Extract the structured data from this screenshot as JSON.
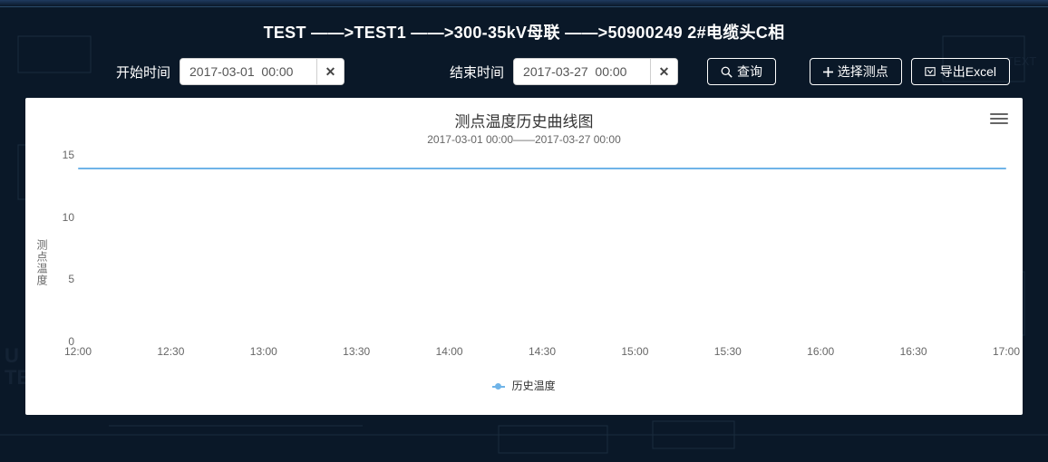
{
  "breadcrumb": "TEST ——>TEST1 ——>300-35kV母联 ——>50900249 2#电缆头C相",
  "toolbar": {
    "start_label": "开始时间",
    "start_value": "2017-03-01  00:00",
    "end_label": "结束时间",
    "end_value": "2017-03-27  00:00",
    "query_label": "查询",
    "select_point_label": "选择测点",
    "export_label": "导出Excel"
  },
  "chart": {
    "type": "line",
    "title": "测点温度历史曲线图",
    "subtitle": "2017-03-01 00:00——2017-03-27 00:00",
    "yaxis_label": "测点温度",
    "ylim": [
      0,
      15
    ],
    "yticks": [
      0,
      5,
      10,
      15
    ],
    "xticks": [
      "12:00",
      "12:30",
      "13:00",
      "13:30",
      "14:00",
      "14:30",
      "15:00",
      "15:30",
      "16:00",
      "16:30",
      "17:00"
    ],
    "line_value": 14,
    "line_color": "#6fb4e8",
    "grid_band_color": "#f6f6f8",
    "background_color": "#ffffff",
    "tick_font_color": "#666666",
    "legend_label": "历史温度"
  },
  "colors": {
    "page_bg": "#0a1828",
    "text_inverse": "#ffffff",
    "btn_border": "#ffffff"
  }
}
